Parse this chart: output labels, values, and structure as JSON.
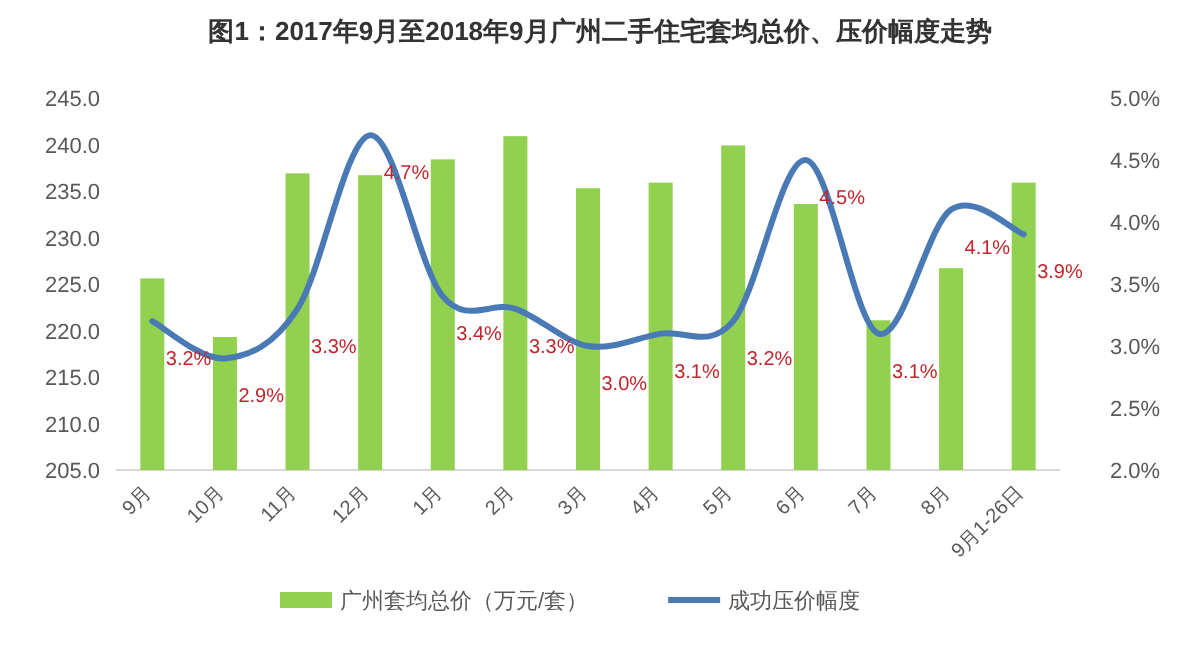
{
  "chart_data": {
    "type": "bar",
    "title": "图1：2017年9月至2018年9月广州二手住宅套均总价、压价幅度走势",
    "categories": [
      "9月",
      "10月",
      "11月",
      "12月",
      "1月",
      "2月",
      "3月",
      "4月",
      "5月",
      "6月",
      "7月",
      "8月",
      "9月1-26日"
    ],
    "series": [
      {
        "name": "广州套均总价（万元/套）",
        "color": "#92d050",
        "values": [
          225.6,
          219.3,
          236.9,
          236.7,
          238.4,
          240.9,
          235.3,
          235.9,
          239.9,
          233.6,
          221.1,
          226.7,
          235.9
        ]
      },
      {
        "name": "成功压价幅度",
        "type": "line",
        "axis": "y2",
        "color": "#4a7ab5",
        "values": [
          3.2,
          2.9,
          3.3,
          4.7,
          3.4,
          3.3,
          3.0,
          3.1,
          3.2,
          4.5,
          3.1,
          4.1,
          3.9
        ],
        "value_labels": [
          "3.2%",
          "2.9%",
          "3.3%",
          "4.7%",
          "3.4%",
          "3.3%",
          "3.0%",
          "3.1%",
          "3.2%",
          "4.5%",
          "3.1%",
          "4.1%",
          "3.9%"
        ]
      }
    ],
    "ylim": [
      205,
      245
    ],
    "yticks": [
      {
        "value": 205,
        "label": "205.0"
      },
      {
        "value": 210,
        "label": "210.0"
      },
      {
        "value": 215,
        "label": "215.0"
      },
      {
        "value": 220,
        "label": "220.0"
      },
      {
        "value": 225,
        "label": "225.0"
      },
      {
        "value": 230,
        "label": "230.0"
      },
      {
        "value": 235,
        "label": "235.0"
      },
      {
        "value": 240,
        "label": "240.0"
      },
      {
        "value": 245,
        "label": "245.0"
      }
    ],
    "y2lim": [
      2,
      5
    ],
    "y2ticks": [
      {
        "value": 2,
        "label": "2.0%"
      },
      {
        "value": 2.5,
        "label": "2.5%"
      },
      {
        "value": 3,
        "label": "3.0%"
      },
      {
        "value": 3.5,
        "label": "3.5%"
      },
      {
        "value": 4,
        "label": "4.0%"
      },
      {
        "value": 4.5,
        "label": "4.5%"
      },
      {
        "value": 5,
        "label": "5.0%"
      }
    ],
    "grid": false,
    "legend": "bottom"
  }
}
